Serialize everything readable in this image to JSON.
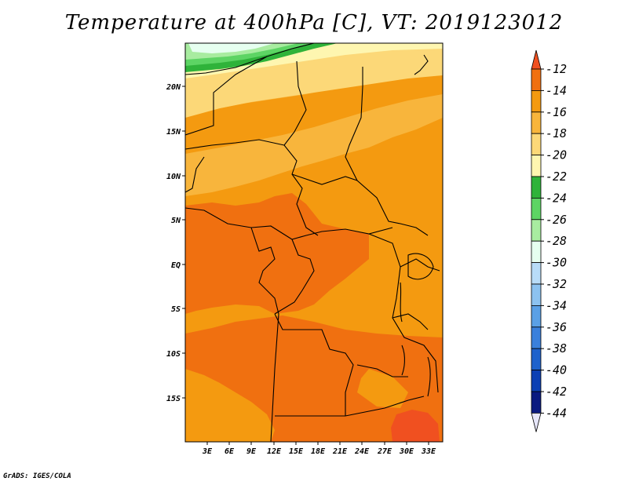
{
  "title": "Temperature at 400hPa [C], VT: 2019123012",
  "credit": "GrADS: IGES/COLA",
  "map": {
    "lat_labels": [
      "20N",
      "15N",
      "10N",
      "5N",
      "EQ",
      "5S",
      "10S",
      "15S"
    ],
    "lat_values": [
      20,
      15,
      10,
      5,
      0,
      -5,
      -10,
      -15
    ],
    "lon_labels": [
      "3E",
      "6E",
      "9E",
      "12E",
      "15E",
      "18E",
      "21E",
      "24E",
      "27E",
      "30E",
      "33E"
    ],
    "lon_values": [
      3,
      6,
      9,
      12,
      15,
      18,
      21,
      24,
      27,
      30,
      33
    ]
  },
  "colorbar": {
    "labels": [
      "-12",
      "-14",
      "-16",
      "-18",
      "-20",
      "-22",
      "-24",
      "-26",
      "-28",
      "-30",
      "-32",
      "-34",
      "-36",
      "-38",
      "-40",
      "-42",
      "-44"
    ],
    "colors": [
      "#f05020",
      "#f07010",
      "#f49a10",
      "#f8b53c",
      "#fcd878",
      "#fef6b0",
      "#2fb33a",
      "#5dd464",
      "#a8eca0",
      "#e6fff0",
      "#b8dcf8",
      "#8cc2f0",
      "#5aa0e6",
      "#3a80dc",
      "#1e62cc",
      "#0c40b4",
      "#0a1a80",
      "#e6e6fa"
    ]
  },
  "colors": {
    "c12": "#f05020",
    "c14": "#f07010",
    "c16": "#f49a10",
    "c18": "#f8b53c",
    "c20": "#fcd878",
    "c22": "#fef6b0",
    "c24": "#2fb33a",
    "c26": "#5dd464",
    "c28": "#a8eca0",
    "c30": "#e6fff0"
  }
}
